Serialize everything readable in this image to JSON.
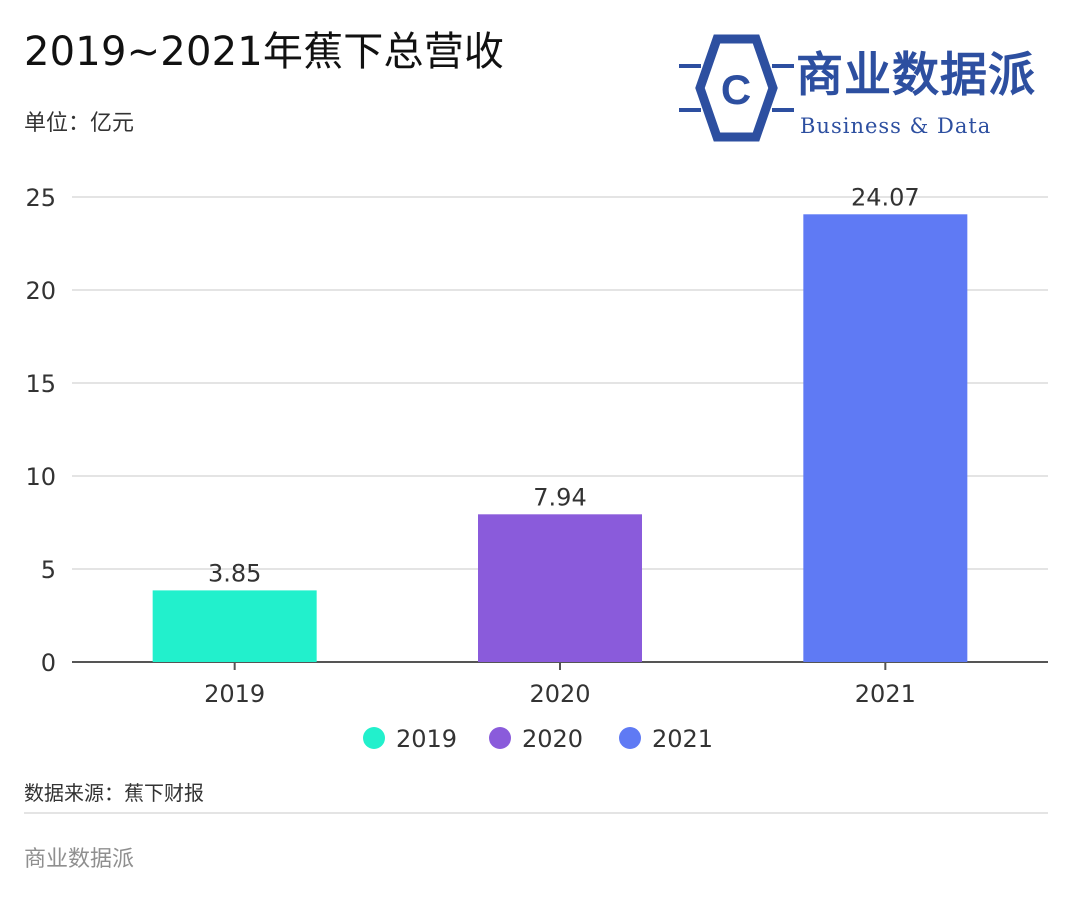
{
  "title": "2019~2021年蕉下总营收",
  "unit_label": "单位：亿元",
  "logo": {
    "cn": "商业数据派",
    "en": "Business & Data",
    "mark": "C"
  },
  "source": "数据来源：蕉下财报",
  "footer": "商业数据派",
  "chart_data": {
    "type": "bar",
    "categories": [
      "2019",
      "2020",
      "2021"
    ],
    "values": [
      3.85,
      7.94,
      24.07
    ],
    "colors": [
      "#22f0cc",
      "#8a5bdb",
      "#5f7af4"
    ],
    "ylim": [
      0,
      25
    ],
    "yticks": [
      0,
      5,
      10,
      15,
      20,
      25
    ],
    "data_labels": [
      "3.85",
      "7.94",
      "24.07"
    ],
    "legend": [
      "2019",
      "2020",
      "2021"
    ],
    "legend_position": "bottom-center",
    "grid": true
  }
}
